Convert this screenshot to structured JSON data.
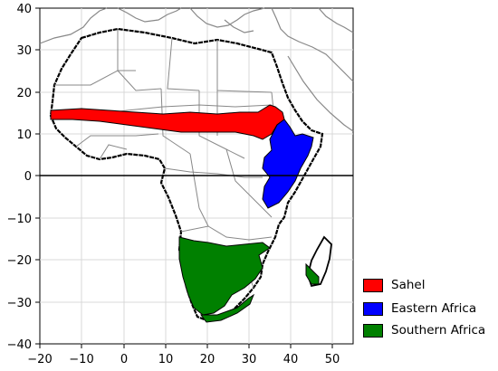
{
  "map": {
    "extent": {
      "lon": [
        -20,
        55
      ],
      "lat": [
        -40,
        40
      ]
    },
    "grid": true,
    "reference_line_lat": 0,
    "x_ticks": [
      "−20",
      "−10",
      "0",
      "10",
      "20",
      "30",
      "40",
      "50"
    ],
    "y_ticks": [
      "40",
      "30",
      "20",
      "10",
      "0",
      "−10",
      "−20",
      "−30",
      "−40"
    ]
  },
  "legend": {
    "placement": "lower-right-outside",
    "items": [
      {
        "label": "Sahel",
        "color": "#ff0000"
      },
      {
        "label": "Eastern Africa",
        "color": "#0000ff"
      },
      {
        "label": "Southern Africa",
        "color": "#008000"
      }
    ]
  },
  "regions": [
    {
      "name": "Sahel",
      "color": "#ff0000"
    },
    {
      "name": "Eastern Africa",
      "color": "#0000ff"
    },
    {
      "name": "Southern Africa",
      "color": "#008000"
    }
  ]
}
